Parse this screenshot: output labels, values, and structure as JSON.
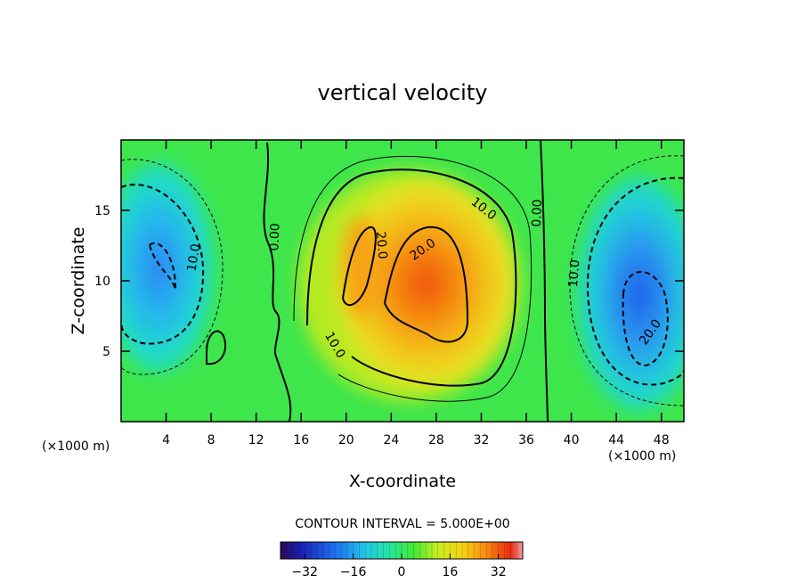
{
  "chart_data": {
    "type": "contour",
    "title": "vertical velocity",
    "xlabel": "X-coordinate",
    "ylabel": "Z-coordinate",
    "x_unit": "(×1000 m)",
    "x_unit_right": "(×1000 m)",
    "xlim": [
      0,
      50
    ],
    "ylim": [
      0,
      20
    ],
    "xticks": [
      4,
      8,
      12,
      16,
      20,
      24,
      28,
      32,
      36,
      40,
      44,
      48
    ],
    "yticks": [
      5,
      10,
      15
    ],
    "contour_interval_text": "CONTOUR INTERVAL = 5.000E+00",
    "contour_interval": 5,
    "contour_labels": [
      {
        "text": "10.0",
        "x": 6.8,
        "z": 11.6,
        "rot": -80
      },
      {
        "text": "0.00",
        "x": 14.0,
        "z": 13.1,
        "rot": -88
      },
      {
        "text": "10.0",
        "x": 18.7,
        "z": 5.3,
        "rot": 60
      },
      {
        "text": "20.0",
        "x": 22.8,
        "z": 12.5,
        "rot": 85
      },
      {
        "text": "20.0",
        "x": 27.0,
        "z": 12.0,
        "rot": -35
      },
      {
        "text": "10.0",
        "x": 32.0,
        "z": 14.9,
        "rot": 38
      },
      {
        "text": "0.00",
        "x": 37.3,
        "z": 14.8,
        "rot": -88
      },
      {
        "text": "10.0",
        "x": 40.6,
        "z": 10.5,
        "rot": -85
      },
      {
        "text": "20.0",
        "x": 47.3,
        "z": 6.2,
        "rot": -55
      }
    ],
    "colorbar": {
      "min": -40,
      "max": 40,
      "ticks": [
        -32,
        -16,
        0,
        16,
        32
      ],
      "tick_labels": [
        "−32",
        "−16",
        "0",
        "16",
        "32"
      ]
    },
    "features": [
      {
        "sign": "positive",
        "x": 27.5,
        "z": 9.8,
        "peak": 33
      },
      {
        "sign": "positive",
        "x": 21.5,
        "z": 10.5,
        "peak": 30
      },
      {
        "sign": "negative",
        "x": 3.5,
        "z": 11.0,
        "peak": -24
      },
      {
        "sign": "negative",
        "x": 45.5,
        "z": 8.0,
        "peak": -28
      }
    ]
  }
}
